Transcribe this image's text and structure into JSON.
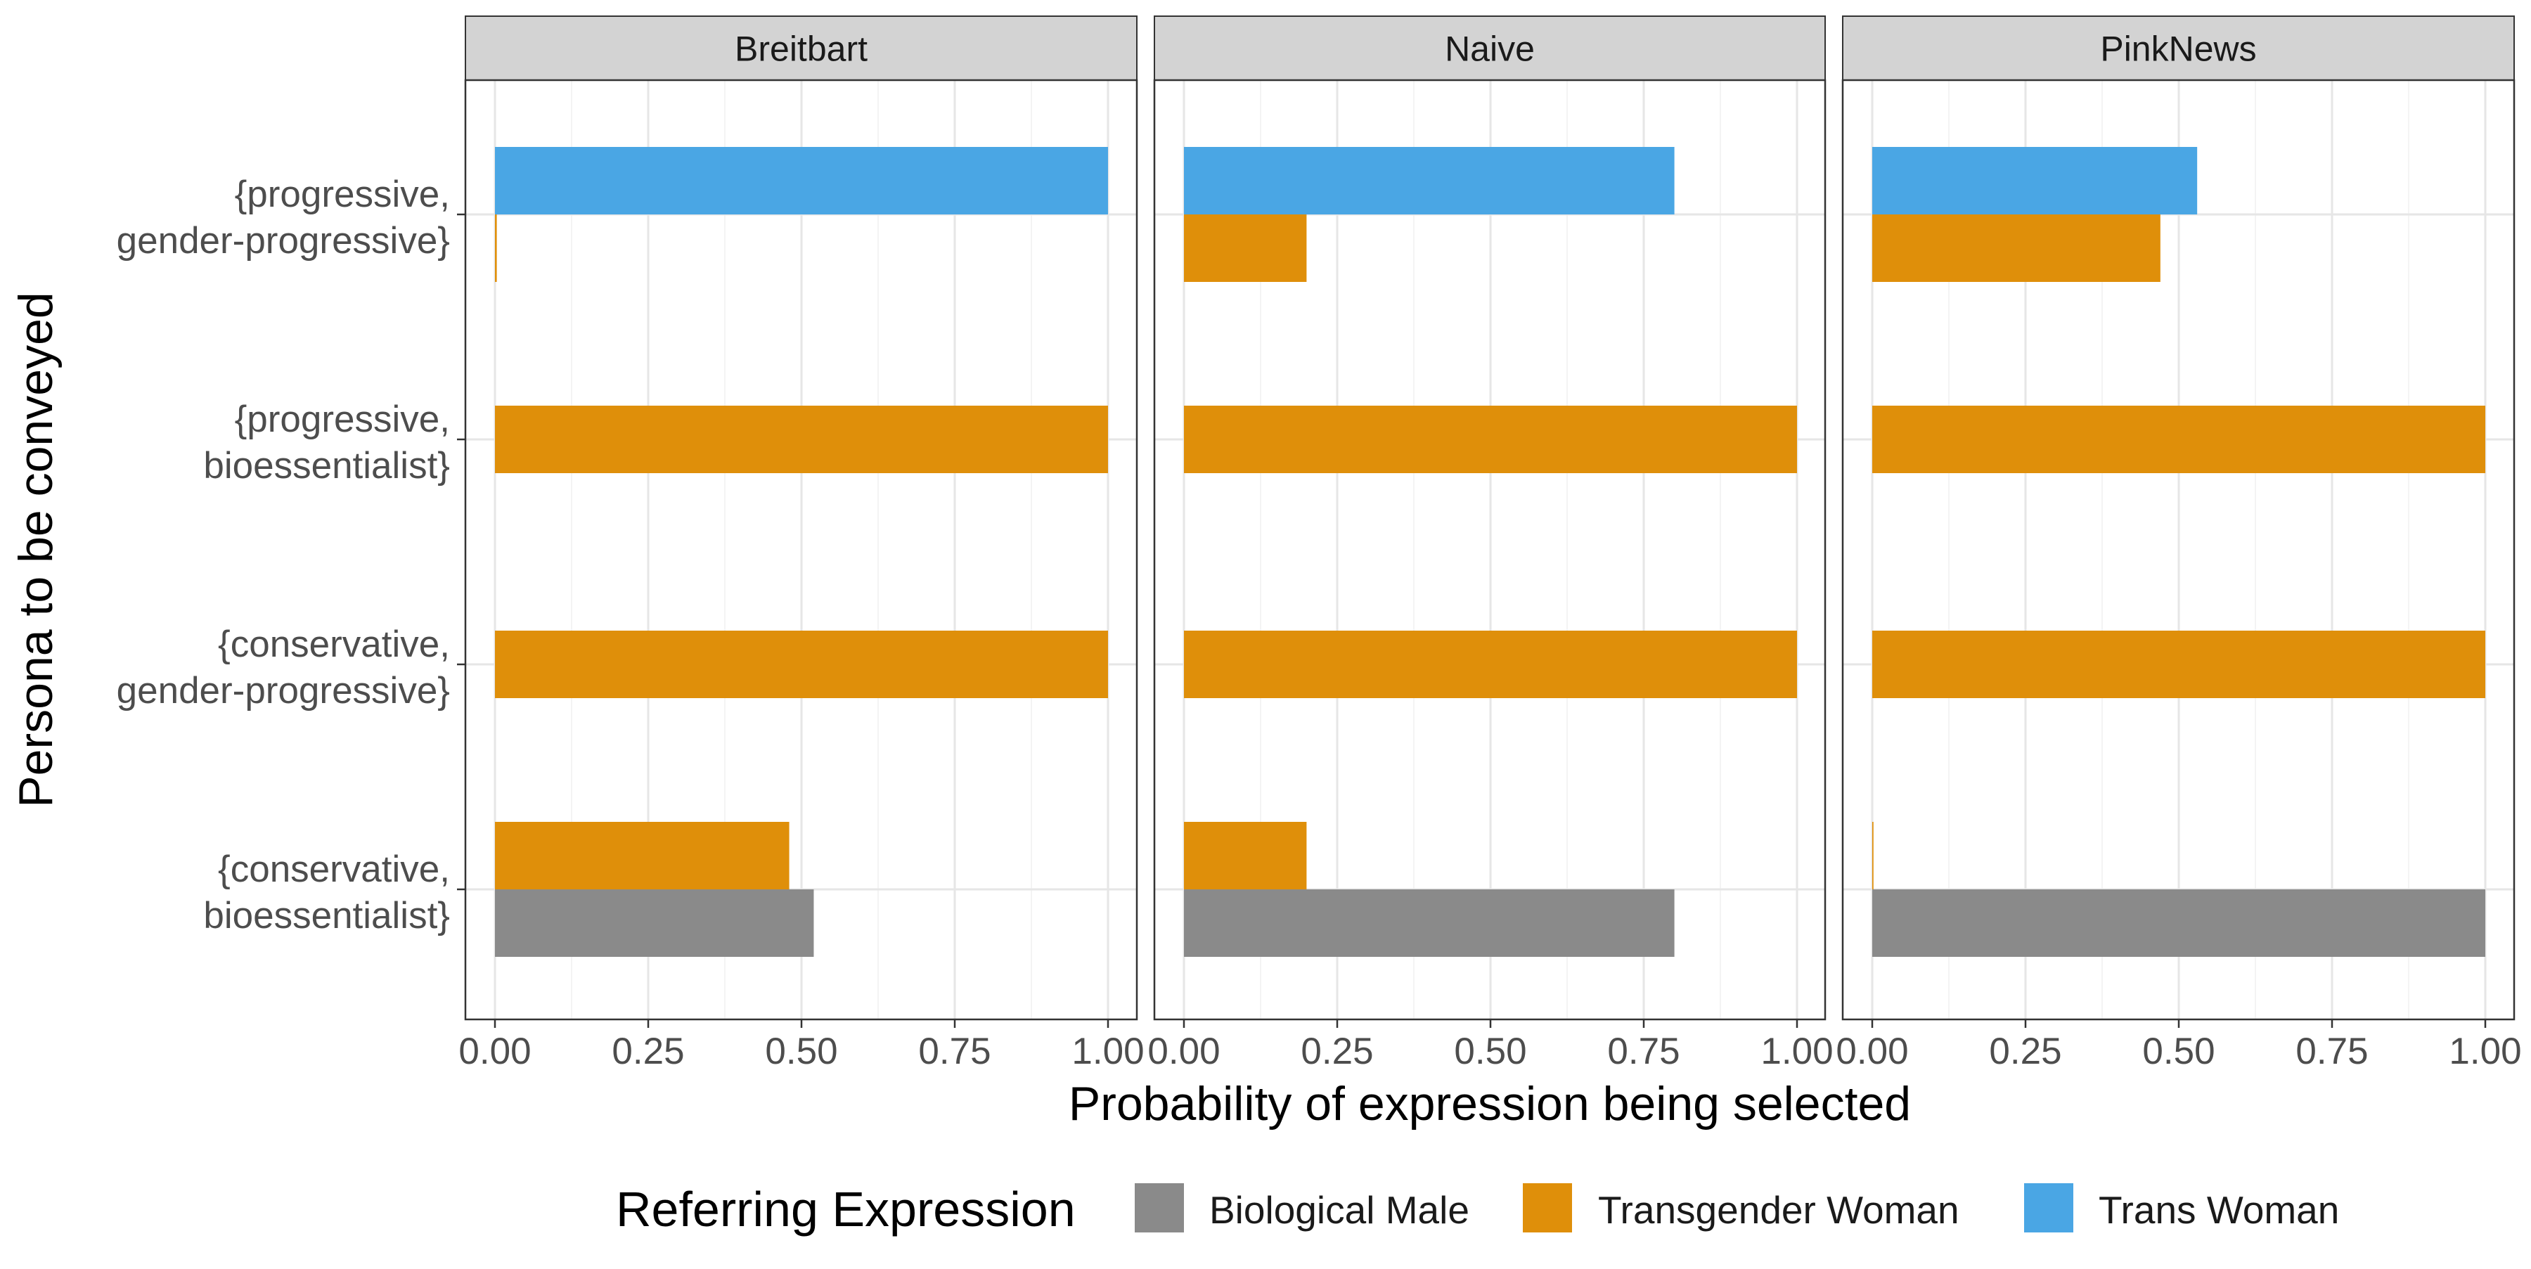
{
  "chart_data": {
    "type": "bar",
    "orientation": "horizontal",
    "facets": [
      "Breitbart",
      "Naive",
      "PinkNews"
    ],
    "categories": [
      [
        "{progressive,",
        "gender-progressive}"
      ],
      [
        "{progressive,",
        "bioessentialist}"
      ],
      [
        "{conservative,",
        "gender-progressive}"
      ],
      [
        "{conservative,",
        "bioessentialist}"
      ]
    ],
    "x_ticks": [
      "0.00",
      "0.25",
      "0.50",
      "0.75",
      "1.00"
    ],
    "xlim": [
      0,
      1
    ],
    "xlabel": "Probability of expression being selected",
    "ylabel": "Persona to be conveyed",
    "legend_title": "Referring Expression",
    "legend_position": "bottom",
    "grid": true,
    "series": [
      {
        "name": "Biological Male",
        "color": "#8a8a8a",
        "values": {
          "Breitbart": [
            0,
            0,
            0,
            0.52
          ],
          "Naive": [
            0,
            0,
            0,
            0.8
          ],
          "PinkNews": [
            0,
            0,
            0,
            1.0
          ]
        }
      },
      {
        "name": "Transgender Woman",
        "color": "#df8f0a",
        "values": {
          "Breitbart": [
            0.003,
            1.0,
            1.0,
            0.48
          ],
          "Naive": [
            0.2,
            1.0,
            1.0,
            0.2
          ],
          "PinkNews": [
            0.47,
            1.0,
            1.0,
            0.002
          ]
        }
      },
      {
        "name": "Trans Woman",
        "color": "#4aa6e4",
        "values": {
          "Breitbart": [
            1.0,
            0,
            0,
            0
          ],
          "Naive": [
            0.8,
            0,
            0,
            0
          ],
          "PinkNews": [
            0.53,
            0,
            0,
            0
          ]
        }
      }
    ]
  }
}
